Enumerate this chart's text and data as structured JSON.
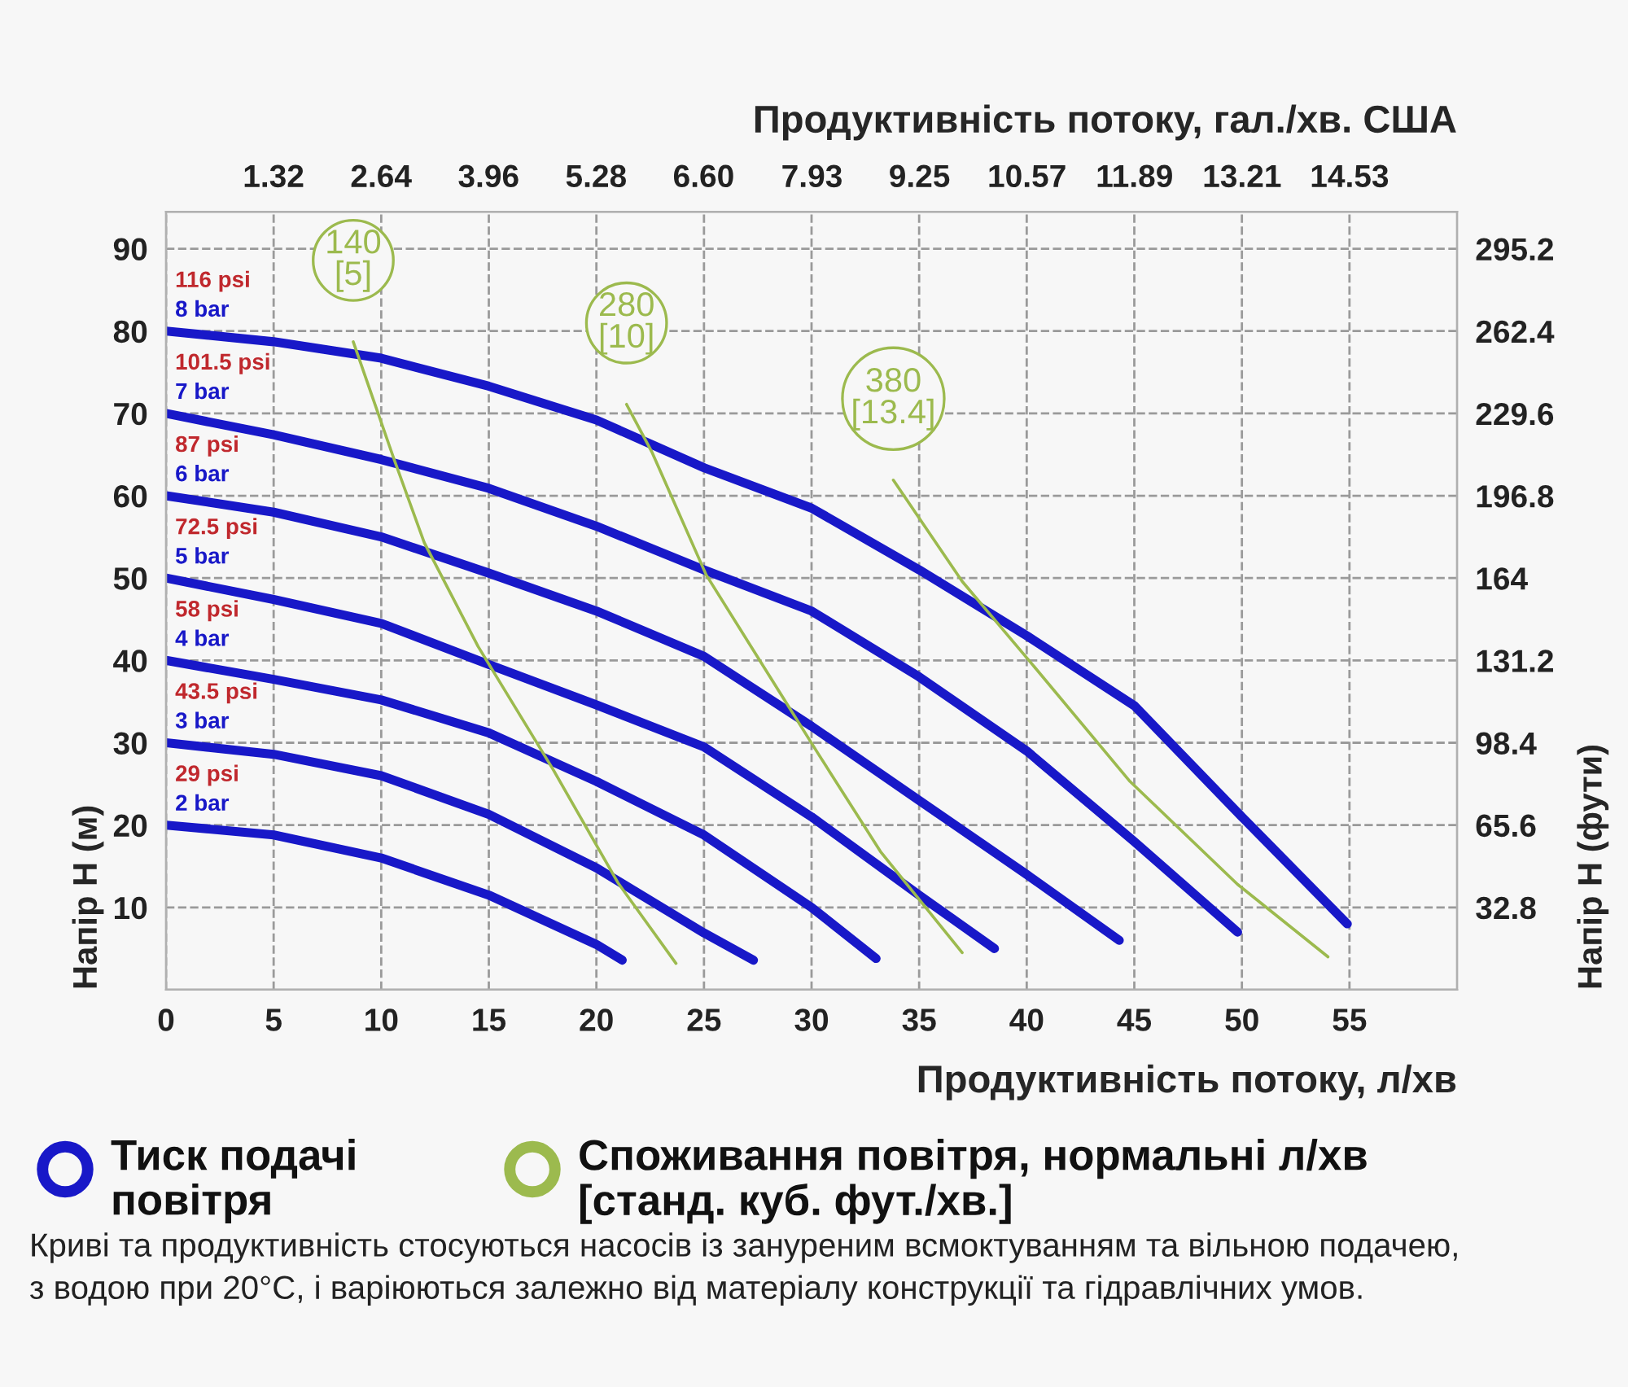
{
  "chart_data": {
    "type": "line",
    "xlabel": "Продуктивність потоку, л/хв",
    "x2label": "Продуктивність потоку, гал./хв. США",
    "ylabel": "Напір Н (м)",
    "y2label": "Напір Н (фути)",
    "xlim": [
      0,
      60
    ],
    "xticks": [
      0,
      5,
      10,
      15,
      20,
      25,
      30,
      35,
      40,
      45,
      50,
      55
    ],
    "x2lim": [
      0,
      15.85
    ],
    "x2ticks": [
      1.32,
      2.64,
      3.96,
      5.28,
      {
        "value": 6.6,
        "label": "6.60"
      },
      7.93,
      9.25,
      10.57,
      11.89,
      13.21,
      14.53
    ],
    "ylim": [
      0,
      94.5
    ],
    "yticks": [
      10,
      20,
      30,
      40,
      50,
      60,
      70,
      80,
      90
    ],
    "y2lim": [
      0,
      310
    ],
    "y2ticks": [
      32.8,
      65.6,
      98.4,
      131.2,
      164,
      196.8,
      229.6,
      262.4,
      295.2
    ],
    "grid": true,
    "line_style": "solid",
    "marker": "none",
    "series": [
      {
        "name": "116 psi\n8 bar",
        "color": "#1818c8",
        "x": [
          0,
          5,
          10,
          15,
          20,
          25,
          30,
          35,
          40,
          45,
          50,
          54.9
        ],
        "values": [
          80,
          78.7,
          76.7,
          73.3,
          69.2,
          63.4,
          58.5,
          51,
          43,
          34.5,
          21,
          8
        ]
      },
      {
        "name": "101.5 psi\n7 bar",
        "color": "#1818c8",
        "x": [
          0,
          5,
          10,
          15,
          20,
          25,
          30,
          35,
          40,
          45,
          49.8
        ],
        "values": [
          70,
          67.4,
          64.4,
          60.9,
          56.3,
          51,
          46,
          38,
          29,
          18,
          7
        ]
      },
      {
        "name": "87 psi\n6 bar",
        "color": "#1818c8",
        "x": [
          0,
          5,
          10,
          15,
          20,
          25,
          30,
          35,
          40,
          44.3
        ],
        "values": [
          60,
          58,
          55,
          50.6,
          46,
          40.5,
          32,
          23,
          14,
          6
        ]
      },
      {
        "name": "72.5 psi\n5 bar",
        "color": "#1818c8",
        "x": [
          0,
          5,
          10,
          15,
          20,
          25,
          30,
          35,
          38.5
        ],
        "values": [
          50,
          47.4,
          44.5,
          39.5,
          34.6,
          29.5,
          21,
          11.5,
          5
        ]
      },
      {
        "name": "58 psi\n4 bar",
        "color": "#1818c8",
        "x": [
          0,
          5,
          10,
          15,
          20,
          25,
          30,
          33
        ],
        "values": [
          40,
          37.7,
          35.2,
          31.2,
          25.3,
          18.8,
          10,
          3.8
        ]
      },
      {
        "name": "43.5 psi\n3 bar",
        "color": "#1818c8",
        "x": [
          0,
          5,
          10,
          15,
          20,
          25,
          27.3
        ],
        "values": [
          30,
          28.6,
          26,
          21.3,
          14.8,
          6.9,
          3.6
        ]
      },
      {
        "name": "29 psi\n2 bar",
        "color": "#1818c8",
        "x": [
          0,
          5,
          10,
          15,
          20,
          21.2
        ],
        "values": [
          20,
          18.8,
          16,
          11.5,
          5.5,
          3.6
        ]
      },
      {
        "name": "140\n[5]",
        "color": "#9cba4e",
        "x": [
          8.7,
          10.6,
          12,
          14.5,
          18,
          21,
          23.7
        ],
        "values": [
          78.7,
          64.4,
          54.3,
          41.7,
          26.7,
          13,
          3.2
        ]
      },
      {
        "name": "280\n[10]",
        "color": "#9cba4e",
        "x": [
          21.4,
          22.6,
          25.1,
          28.5,
          30.3,
          33.2,
          37
        ],
        "values": [
          71.1,
          65.2,
          50.4,
          36.2,
          28.7,
          16.8,
          4.5
        ]
      },
      {
        "name": "380\n[13.4]",
        "color": "#9cba4e",
        "x": [
          33.8,
          37,
          40.2,
          44.8,
          49.8,
          54
        ],
        "values": [
          61.9,
          49.6,
          39.7,
          25.3,
          12.8,
          4
        ]
      }
    ],
    "annotations": [
      "Тиск подачі\nповітря",
      "Споживання повітря, нормальні л/хв\n[станд. куб. фут./хв.]",
      "Криві та продуктивність стосуються насосів із зануреним всмоктуванням та вільною подачею,\nз водою при 20°C, і варіюються залежно від матеріалу конструкції та гідравлічних умов."
    ]
  }
}
